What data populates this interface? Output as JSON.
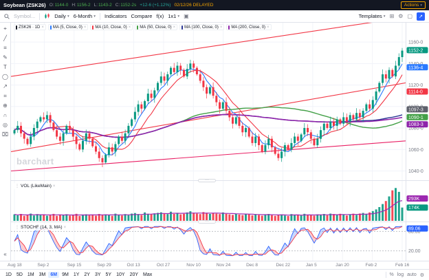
{
  "icons": {
    "chevron_down": "▾",
    "close": "×",
    "dots": "⋮",
    "camera": "▣",
    "grid": "⊞",
    "gear": "⚙",
    "maximize": "▢",
    "popout": "↗",
    "collapse": "«",
    "handle": "···"
  },
  "topbar": {
    "symbol": "Soybean (ZSK26)",
    "fields": [
      {
        "label": "O:",
        "value": "1144-0"
      },
      {
        "label": "H:",
        "value": "1156-2"
      },
      {
        "label": "L:",
        "value": "1143-2"
      },
      {
        "label": "C:",
        "value": "1152-2s"
      }
    ],
    "change": "+12-6 (+1.12%)",
    "session": "02/12/26 DELAYED",
    "actions_label": "Actions"
  },
  "toolbar": {
    "symbol_placeholder": "Symbol...",
    "period": "Daily",
    "range": "6-Month",
    "indicators": "Indicators",
    "compare": "Compare",
    "fx": "f(x)",
    "layout": "1x1",
    "templates": "Templates"
  },
  "legend": {
    "chips": [
      {
        "label": "ZSK26 · 1D",
        "color": "#131722"
      },
      {
        "label": "MA (5, Close, 0)",
        "color": "#2979ff"
      },
      {
        "label": "MA (10, Close, 0)",
        "color": "#f23645"
      },
      {
        "label": "MA (50, Close, 0)",
        "color": "#43a047"
      },
      {
        "label": "MA (100, Close, 0)",
        "color": "#283593"
      },
      {
        "label": "MA (200, Close, 0)",
        "color": "#8e24aa"
      }
    ]
  },
  "panels": {
    "volume_label": "VOL (LikeMain)",
    "stoch_label": "STOCHF (14, 3, MA)"
  },
  "drawbar": {
    "icons": [
      {
        "name": "cursor",
        "glyph": "⌖"
      },
      {
        "name": "trendline",
        "glyph": "╱"
      },
      {
        "name": "fibonacci",
        "glyph": "≡"
      },
      {
        "name": "pencil",
        "glyph": "✎"
      },
      {
        "name": "text-tool",
        "glyph": "T"
      },
      {
        "name": "shapes",
        "glyph": "◯"
      },
      {
        "name": "arrow-marker",
        "glyph": "↗"
      },
      {
        "name": "measure",
        "glyph": "⌗"
      },
      {
        "name": "zoom-in",
        "glyph": "⊕"
      },
      {
        "name": "magnet",
        "glyph": "∩"
      },
      {
        "name": "visibility",
        "glyph": "◎"
      },
      {
        "name": "delete-drawings",
        "glyph": "⌧"
      }
    ]
  },
  "date_axis": {
    "labels": [
      "Aug 18",
      "Sep 2",
      "Sep 15",
      "Sep 29",
      "Oct 13",
      "Oct 27",
      "Nov 10",
      "Nov 24",
      "Dec 8",
      "Dec 22",
      "Jan 5",
      "Jan 20",
      "Feb 2",
      "Feb 16"
    ]
  },
  "bottom": {
    "ranges": [
      "1D",
      "5D",
      "1M",
      "3M",
      "6M",
      "9M",
      "1Y",
      "2Y",
      "3Y",
      "5Y",
      "10Y",
      "20Y",
      "Max"
    ],
    "active_range": "6M",
    "settings": [
      "%",
      "log",
      "auto"
    ]
  },
  "chart_data": {
    "type": "candlestick",
    "symbol": "ZSK26",
    "interval": "1D",
    "watermark": "barchart",
    "price_scale": {
      "min": 1032,
      "max": 1178,
      "ticks": [
        {
          "value": 1160,
          "label": "1160-0"
        },
        {
          "value": 1140,
          "label": "1140-0"
        },
        {
          "value": 1120,
          "label": "1120-0"
        },
        {
          "value": 1100,
          "label": "1100-0"
        },
        {
          "value": 1080,
          "label": "1080-0"
        },
        {
          "value": 1060,
          "label": "1060-0"
        },
        {
          "value": 1040,
          "label": "1040-0"
        }
      ]
    },
    "colors": {
      "up": "#089981",
      "down": "#f23645",
      "vol_ma": "#9c27b0",
      "stoch_k": "#2962ff",
      "stoch_d": "#f23645",
      "stoch_fill_up": "rgba(41,98,255,0.25)",
      "stoch_fill_down": "rgba(242,54,69,0.25)"
    },
    "ma": [
      {
        "period": 5,
        "color": "#2979ff",
        "width": 1.1
      },
      {
        "period": 10,
        "color": "#f23645",
        "width": 1.1
      },
      {
        "period": 50,
        "color": "#43a047",
        "width": 1.4
      },
      {
        "period": 100,
        "color": "#283593",
        "width": 1.4
      },
      {
        "period": 200,
        "color": "#8e24aa",
        "width": 1.6
      }
    ],
    "trendlines": [
      {
        "from": 1128,
        "to": 1183,
        "color": "#f23645"
      },
      {
        "from": 1058,
        "to": 1122,
        "color": "#f23645"
      },
      {
        "from": 1040,
        "to": 1068,
        "color": "#e91e63"
      }
    ],
    "closes": [
      1078,
      1082,
      1075,
      1070,
      1065,
      1072,
      1080,
      1086,
      1090,
      1088,
      1092,
      1085,
      1078,
      1072,
      1068,
      1075,
      1082,
      1078,
      1072,
      1065,
      1060,
      1068,
      1075,
      1070,
      1063,
      1058,
      1052,
      1048,
      1055,
      1062,
      1058,
      1065,
      1072,
      1068,
      1075,
      1082,
      1088,
      1095,
      1102,
      1098,
      1105,
      1112,
      1108,
      1115,
      1122,
      1128,
      1124,
      1130,
      1136,
      1132,
      1138,
      1134,
      1128,
      1135,
      1140,
      1136,
      1130,
      1124,
      1118,
      1112,
      1118,
      1110,
      1104,
      1098,
      1104,
      1096,
      1090,
      1084,
      1090,
      1082,
      1076,
      1080,
      1072,
      1066,
      1072,
      1064,
      1058,
      1064,
      1070,
      1062,
      1056,
      1052,
      1058,
      1064,
      1060,
      1066,
      1072,
      1068,
      1074,
      1080,
      1076,
      1070,
      1064,
      1070,
      1078,
      1084,
      1080,
      1086,
      1082,
      1088,
      1084,
      1090,
      1086,
      1092,
      1088,
      1094,
      1090,
      1096,
      1102,
      1098,
      1106,
      1114,
      1122,
      1130,
      1126,
      1134,
      1128,
      1138,
      1146,
      1152
    ],
    "volumes": [
      85,
      72,
      90,
      65,
      78,
      95,
      70,
      88,
      76,
      82,
      68,
      74,
      91,
      66,
      80,
      73,
      87,
      69,
      75,
      92,
      64,
      79,
      86,
      71,
      83,
      68,
      90,
      77,
      85,
      72,
      66,
      94,
      81,
      70,
      88,
      75,
      95,
      102,
      88,
      76,
      110,
      92,
      85,
      98,
      105,
      112,
      95,
      88,
      120,
      90,
      105,
      85,
      92,
      110,
      125,
      105,
      95,
      88,
      115,
      98,
      90,
      102,
      95,
      88,
      110,
      92,
      85,
      78,
      95,
      82,
      75,
      90,
      85,
      72,
      88,
      76,
      68,
      82,
      90,
      74,
      66,
      78,
      85,
      70,
      64,
      88,
      75,
      82,
      70,
      92,
      80,
      74,
      68,
      85,
      78,
      90,
      72,
      95,
      88,
      76,
      92,
      84,
      70,
      86,
      94,
      78,
      96,
      104,
      92,
      110,
      128,
      150,
      180,
      220,
      260,
      320,
      400,
      430,
      380,
      174
    ],
    "vol_scale_max": 460,
    "price_badges": [
      {
        "value": 1152.5,
        "label": "1152-2",
        "color": "#089981"
      },
      {
        "value": 1136.5,
        "label": "1136-4",
        "color": "#2979ff"
      },
      {
        "value": 1114.0,
        "label": "1114-0",
        "color": "#f23645"
      },
      {
        "value": 1097.4,
        "label": "1097-3",
        "color": "#5d606b"
      },
      {
        "value": 1090.1,
        "label": "1090-1",
        "color": "#43a047"
      },
      {
        "value": 1083.4,
        "label": "1083-3",
        "color": "#8e24aa"
      }
    ],
    "vol_badges": [
      {
        "value": 293,
        "label": "293K",
        "color": "#9c27b0"
      },
      {
        "value": 174,
        "label": "174K",
        "color": "#089981"
      }
    ],
    "stoch": {
      "k_period": 14,
      "d_period": 3,
      "ticks": [
        {
          "value": 80,
          "label": "80.00"
        },
        {
          "value": 20,
          "label": "20.00"
        }
      ],
      "badges": [
        {
          "value": 89,
          "label": "89.06",
          "color": "#2962ff"
        }
      ]
    }
  }
}
